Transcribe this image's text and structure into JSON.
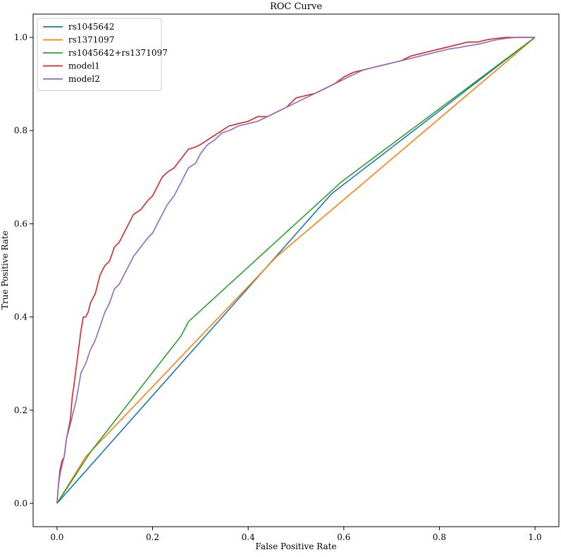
{
  "chart_data": {
    "type": "line",
    "title": "ROC Curve",
    "xlabel": "False Positive Rate",
    "ylabel": "True Positive Rate",
    "xlim": [
      -0.05,
      1.05
    ],
    "ylim": [
      -0.05,
      1.05
    ],
    "xticks": [
      {
        "value": 0.0,
        "label": "0.0"
      },
      {
        "value": 0.2,
        "label": "0.2"
      },
      {
        "value": 0.4,
        "label": "0.4"
      },
      {
        "value": 0.6,
        "label": "0.6"
      },
      {
        "value": 0.8,
        "label": "0.8"
      },
      {
        "value": 1.0,
        "label": "1.0"
      }
    ],
    "yticks": [
      {
        "value": 0.0,
        "label": "0.0"
      },
      {
        "value": 0.2,
        "label": "0.2"
      },
      {
        "value": 0.4,
        "label": "0.4"
      },
      {
        "value": 0.6,
        "label": "0.6"
      },
      {
        "value": 0.8,
        "label": "0.8"
      },
      {
        "value": 1.0,
        "label": "1.0"
      }
    ],
    "grid": false,
    "legend_position": "top-left",
    "series": [
      {
        "name": "rs1045642",
        "color": "#1f77b4",
        "x": [
          0.0,
          0.575,
          1.0
        ],
        "y": [
          0.0,
          0.665,
          1.0
        ]
      },
      {
        "name": "rs1371097",
        "color": "#ff7f0e",
        "x": [
          0.0,
          0.06,
          0.46,
          1.0
        ],
        "y": [
          0.0,
          0.1,
          0.53,
          1.0
        ]
      },
      {
        "name": "rs1045642+rs1371097",
        "color": "#2ca02c",
        "x": [
          0.0,
          0.07,
          0.26,
          0.275,
          0.595,
          1.0
        ],
        "y": [
          0.0,
          0.11,
          0.36,
          0.39,
          0.69,
          1.0
        ]
      },
      {
        "name": "model1",
        "color": "#d62728",
        "x": [
          0.0,
          0.003,
          0.006,
          0.01,
          0.015,
          0.02,
          0.028,
          0.032,
          0.035,
          0.04,
          0.045,
          0.05,
          0.055,
          0.06,
          0.065,
          0.07,
          0.08,
          0.09,
          0.1,
          0.11,
          0.12,
          0.13,
          0.14,
          0.15,
          0.16,
          0.175,
          0.19,
          0.2,
          0.21,
          0.22,
          0.23,
          0.245,
          0.26,
          0.275,
          0.29,
          0.3,
          0.315,
          0.33,
          0.345,
          0.36,
          0.38,
          0.4,
          0.42,
          0.44,
          0.46,
          0.48,
          0.5,
          0.52,
          0.54,
          0.56,
          0.58,
          0.6,
          0.62,
          0.64,
          0.66,
          0.68,
          0.7,
          0.72,
          0.74,
          0.76,
          0.78,
          0.8,
          0.82,
          0.84,
          0.86,
          0.88,
          0.9,
          0.92,
          0.94,
          0.96,
          0.98,
          1.0
        ],
        "y": [
          0.0,
          0.04,
          0.07,
          0.09,
          0.1,
          0.14,
          0.18,
          0.23,
          0.25,
          0.29,
          0.33,
          0.37,
          0.4,
          0.4,
          0.41,
          0.43,
          0.45,
          0.49,
          0.51,
          0.52,
          0.55,
          0.56,
          0.58,
          0.6,
          0.62,
          0.63,
          0.65,
          0.66,
          0.68,
          0.7,
          0.71,
          0.72,
          0.74,
          0.76,
          0.765,
          0.77,
          0.78,
          0.79,
          0.8,
          0.81,
          0.815,
          0.82,
          0.83,
          0.83,
          0.84,
          0.85,
          0.87,
          0.875,
          0.88,
          0.89,
          0.9,
          0.915,
          0.925,
          0.93,
          0.935,
          0.94,
          0.945,
          0.95,
          0.96,
          0.965,
          0.97,
          0.975,
          0.98,
          0.985,
          0.99,
          0.99,
          0.995,
          0.998,
          1.0,
          1.0,
          1.0,
          1.0
        ]
      },
      {
        "name": "model2",
        "color": "#9467bd",
        "x": [
          0.0,
          0.003,
          0.006,
          0.01,
          0.015,
          0.02,
          0.028,
          0.035,
          0.04,
          0.045,
          0.05,
          0.06,
          0.07,
          0.08,
          0.09,
          0.1,
          0.11,
          0.12,
          0.13,
          0.14,
          0.15,
          0.16,
          0.175,
          0.19,
          0.2,
          0.21,
          0.22,
          0.23,
          0.245,
          0.26,
          0.275,
          0.29,
          0.3,
          0.315,
          0.33,
          0.345,
          0.36,
          0.38,
          0.4,
          0.42,
          0.44,
          0.46,
          0.48,
          0.5,
          0.52,
          0.54,
          0.56,
          0.58,
          0.6,
          0.62,
          0.64,
          0.66,
          0.68,
          0.7,
          0.72,
          0.74,
          0.76,
          0.78,
          0.8,
          0.82,
          0.84,
          0.86,
          0.88,
          0.9,
          0.92,
          0.94,
          0.96,
          0.98,
          1.0
        ],
        "y": [
          0.0,
          0.04,
          0.06,
          0.08,
          0.1,
          0.14,
          0.17,
          0.2,
          0.22,
          0.25,
          0.28,
          0.3,
          0.33,
          0.35,
          0.38,
          0.41,
          0.43,
          0.46,
          0.47,
          0.49,
          0.51,
          0.53,
          0.55,
          0.57,
          0.58,
          0.6,
          0.62,
          0.64,
          0.66,
          0.69,
          0.72,
          0.73,
          0.75,
          0.77,
          0.78,
          0.795,
          0.8,
          0.81,
          0.815,
          0.82,
          0.83,
          0.84,
          0.85,
          0.86,
          0.87,
          0.88,
          0.89,
          0.9,
          0.91,
          0.92,
          0.93,
          0.935,
          0.94,
          0.945,
          0.95,
          0.955,
          0.96,
          0.965,
          0.97,
          0.975,
          0.978,
          0.982,
          0.985,
          0.99,
          0.995,
          0.998,
          1.0,
          1.0,
          1.0
        ]
      }
    ]
  }
}
